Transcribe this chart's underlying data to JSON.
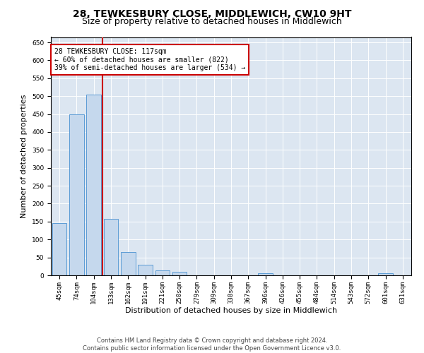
{
  "title": "28, TEWKESBURY CLOSE, MIDDLEWICH, CW10 9HT",
  "subtitle": "Size of property relative to detached houses in Middlewich",
  "xlabel": "Distribution of detached houses by size in Middlewich",
  "ylabel": "Number of detached properties",
  "categories": [
    "45sqm",
    "74sqm",
    "104sqm",
    "133sqm",
    "162sqm",
    "191sqm",
    "221sqm",
    "250sqm",
    "279sqm",
    "309sqm",
    "338sqm",
    "367sqm",
    "396sqm",
    "426sqm",
    "455sqm",
    "484sqm",
    "514sqm",
    "543sqm",
    "572sqm",
    "601sqm",
    "631sqm"
  ],
  "values": [
    145,
    449,
    505,
    158,
    66,
    30,
    14,
    9,
    0,
    0,
    0,
    0,
    6,
    0,
    0,
    0,
    0,
    0,
    0,
    5,
    0
  ],
  "bar_color": "#c5d8ed",
  "bar_edge_color": "#5b9bd5",
  "vline_x": 2.5,
  "vline_color": "#cc0000",
  "annotation_text": "28 TEWKESBURY CLOSE: 117sqm\n← 60% of detached houses are smaller (822)\n39% of semi-detached houses are larger (534) →",
  "annotation_box_color": "#ffffff",
  "annotation_box_edge": "#cc0000",
  "ylim": [
    0,
    665
  ],
  "yticks": [
    0,
    50,
    100,
    150,
    200,
    250,
    300,
    350,
    400,
    450,
    500,
    550,
    600,
    650
  ],
  "footer": "Contains HM Land Registry data © Crown copyright and database right 2024.\nContains public sector information licensed under the Open Government Licence v3.0.",
  "bg_color": "#dce6f1",
  "title_fontsize": 10,
  "subtitle_fontsize": 9,
  "axis_label_fontsize": 8,
  "tick_fontsize": 6.5,
  "footer_fontsize": 6,
  "annot_fontsize": 7
}
